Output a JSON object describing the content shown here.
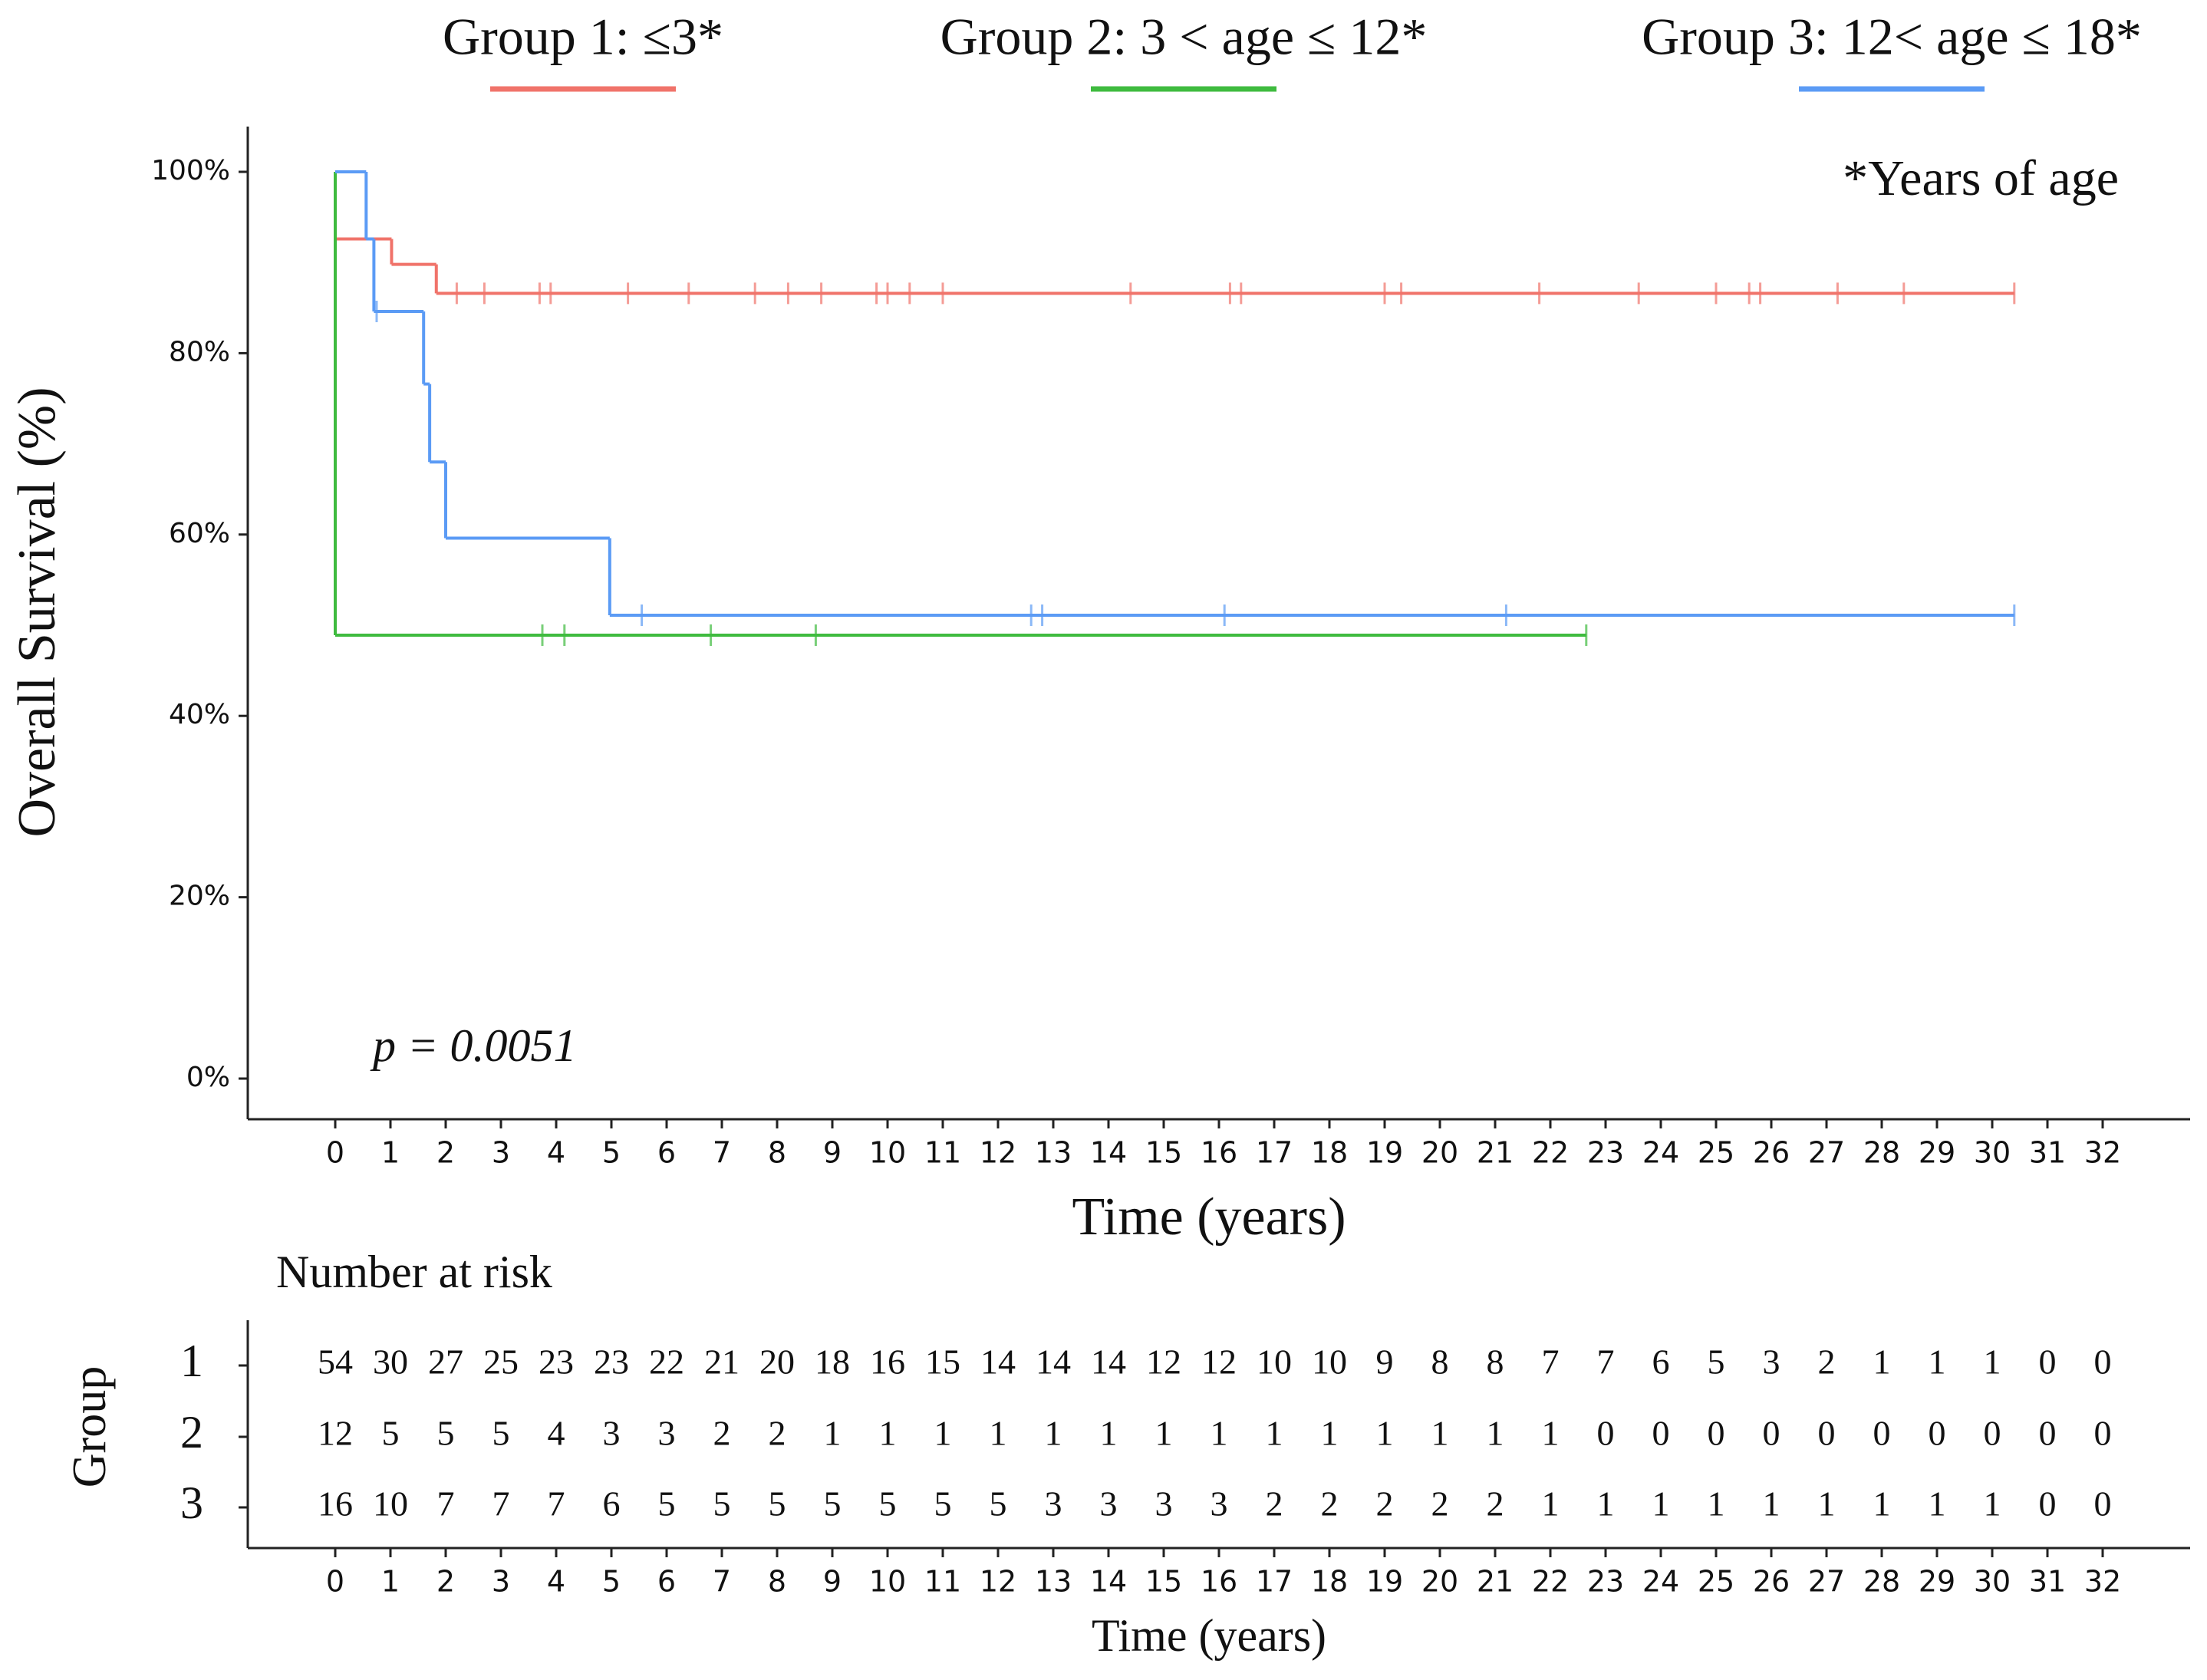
{
  "chart_data": [
    {
      "type": "step",
      "legend_labels": [
        "Group 1: ≤3*",
        "Group 2: 3 < age ≤ 12*",
        "Group 3: 12< age ≤ 18*"
      ],
      "annotations": [
        "*Years of age",
        "p = 0.0051"
      ],
      "xlabel": "Time (years)",
      "ylabel": "Overall Survival (%)",
      "xlim": [
        0,
        32
      ],
      "ylim": [
        0,
        100
      ],
      "xticks": [
        0,
        1,
        2,
        3,
        4,
        5,
        6,
        7,
        8,
        9,
        10,
        11,
        12,
        13,
        14,
        15,
        16,
        17,
        18,
        19,
        20,
        21,
        22,
        23,
        24,
        25,
        26,
        27,
        28,
        29,
        30,
        31,
        32
      ],
      "yticks": [
        {
          "value": 0,
          "label": "0%"
        },
        {
          "value": 20,
          "label": "20%"
        },
        {
          "value": 40,
          "label": "40%"
        },
        {
          "value": 60,
          "label": "60%"
        },
        {
          "value": 80,
          "label": "80%"
        },
        {
          "value": 100,
          "label": "100%"
        }
      ],
      "series": [
        {
          "name": "Group 1: ≤3*",
          "color": "#f0736a",
          "x": [
            0,
            1.02,
            1.83,
            30.4
          ],
          "y": [
            92.6,
            89.8,
            86.6,
            86.6
          ],
          "censored": [
            2.2,
            2.7,
            3.7,
            3.9,
            5.3,
            6.4,
            7.6,
            8.2,
            8.8,
            9.8,
            10,
            10.4,
            11,
            14.4,
            16.2,
            16.4,
            19,
            19.3,
            21.8,
            23.6,
            25,
            25.6,
            25.8,
            27.2,
            28.4,
            30.4
          ]
        },
        {
          "name": "Group 2: 3 < age ≤ 12*",
          "color": "#3fbb3f",
          "x": [
            0,
            0,
            22.65
          ],
          "y": [
            100,
            48.9,
            48.9
          ],
          "censored": [
            3.75,
            4.15,
            6.8,
            8.7,
            22.65
          ]
        },
        {
          "name": "Group 3: 12< age ≤ 18*",
          "color": "#5b9bf5",
          "x": [
            0,
            0.56,
            0.7,
            1.6,
            1.71,
            2.0,
            4.97,
            30.4
          ],
          "y": [
            100,
            92.6,
            84.6,
            76.6,
            68.0,
            59.6,
            51.1,
            51.1
          ],
          "censored": [
            0.75,
            5.55,
            12.6,
            12.8,
            16.1,
            21.2,
            30.4
          ]
        }
      ]
    },
    {
      "type": "table",
      "title": "Number at risk",
      "xlabel": "Time (years)",
      "ylabel": "Group",
      "xlim": [
        0,
        32
      ],
      "xticks": [
        0,
        1,
        2,
        3,
        4,
        5,
        6,
        7,
        8,
        9,
        10,
        11,
        12,
        13,
        14,
        15,
        16,
        17,
        18,
        19,
        20,
        21,
        22,
        23,
        24,
        25,
        26,
        27,
        28,
        29,
        30,
        31,
        32
      ],
      "rows": [
        {
          "group": "1",
          "counts": [
            54,
            30,
            27,
            25,
            23,
            23,
            22,
            21,
            20,
            18,
            16,
            15,
            14,
            14,
            14,
            12,
            12,
            10,
            10,
            9,
            8,
            8,
            7,
            7,
            6,
            5,
            3,
            2,
            1,
            1,
            1,
            0,
            0
          ]
        },
        {
          "group": "2",
          "counts": [
            12,
            5,
            5,
            5,
            4,
            3,
            3,
            2,
            2,
            1,
            1,
            1,
            1,
            1,
            1,
            1,
            1,
            1,
            1,
            1,
            1,
            1,
            1,
            0,
            0,
            0,
            0,
            0,
            0,
            0,
            0,
            0,
            0
          ]
        },
        {
          "group": "3",
          "counts": [
            16,
            10,
            7,
            7,
            7,
            6,
            5,
            5,
            5,
            5,
            5,
            5,
            5,
            3,
            3,
            3,
            3,
            2,
            2,
            2,
            2,
            2,
            1,
            1,
            1,
            1,
            1,
            1,
            1,
            1,
            1,
            0,
            0
          ]
        }
      ]
    }
  ]
}
